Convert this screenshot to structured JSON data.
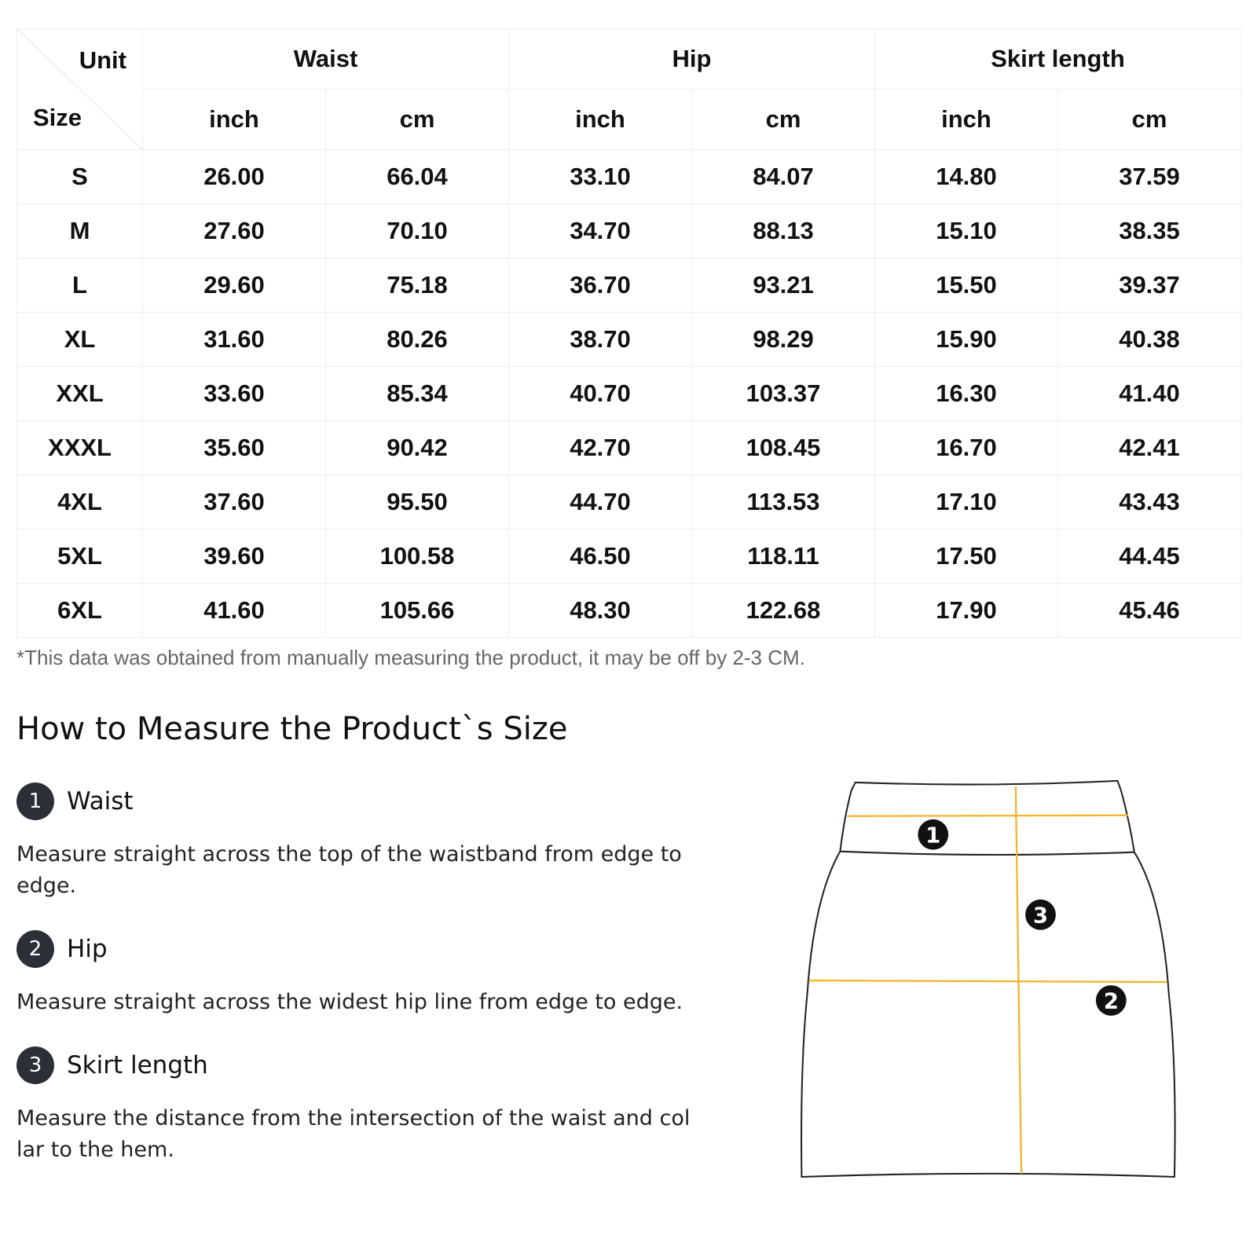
{
  "table": {
    "corner": {
      "unit": "Unit",
      "size": "Size"
    },
    "groups": [
      "Waist",
      "Hip",
      "Skirt length"
    ],
    "units": [
      "inch",
      "cm",
      "inch",
      "cm",
      "inch",
      "cm"
    ],
    "rows": [
      [
        "S",
        "26.00",
        "66.04",
        "33.10",
        "84.07",
        "14.80",
        "37.59"
      ],
      [
        "M",
        "27.60",
        "70.10",
        "34.70",
        "88.13",
        "15.10",
        "38.35"
      ],
      [
        "L",
        "29.60",
        "75.18",
        "36.70",
        "93.21",
        "15.50",
        "39.37"
      ],
      [
        "XL",
        "31.60",
        "80.26",
        "38.70",
        "98.29",
        "15.90",
        "40.38"
      ],
      [
        "XXL",
        "33.60",
        "85.34",
        "40.70",
        "103.37",
        "16.30",
        "41.40"
      ],
      [
        "XXXL",
        "35.60",
        "90.42",
        "42.70",
        "108.45",
        "16.70",
        "42.41"
      ],
      [
        "4XL",
        "37.60",
        "95.50",
        "44.70",
        "113.53",
        "17.10",
        "43.43"
      ],
      [
        "5XL",
        "39.60",
        "100.58",
        "46.50",
        "118.11",
        "17.50",
        "44.45"
      ],
      [
        "6XL",
        "41.60",
        "105.66",
        "48.30",
        "122.68",
        "17.90",
        "45.46"
      ]
    ]
  },
  "note": "*This data was obtained from manually measuring the product, it may be off by 2-3 CM.",
  "guide": {
    "title": "How to Measure the Product`s Size",
    "steps": [
      {
        "num": "1",
        "name": "Waist",
        "desc": "Measure straight across the top of the waistband from edge to edge."
      },
      {
        "num": "2",
        "name": "Hip",
        "desc": "Measure straight across the widest hip line from edge to edge."
      },
      {
        "num": "3",
        "name": "Skirt length",
        "desc": "Measure the distance from the intersection of the waist and collar to the hem."
      }
    ]
  },
  "diagram": {
    "markers": [
      "1",
      "3",
      "2"
    ],
    "line_color": "#f0b429"
  }
}
